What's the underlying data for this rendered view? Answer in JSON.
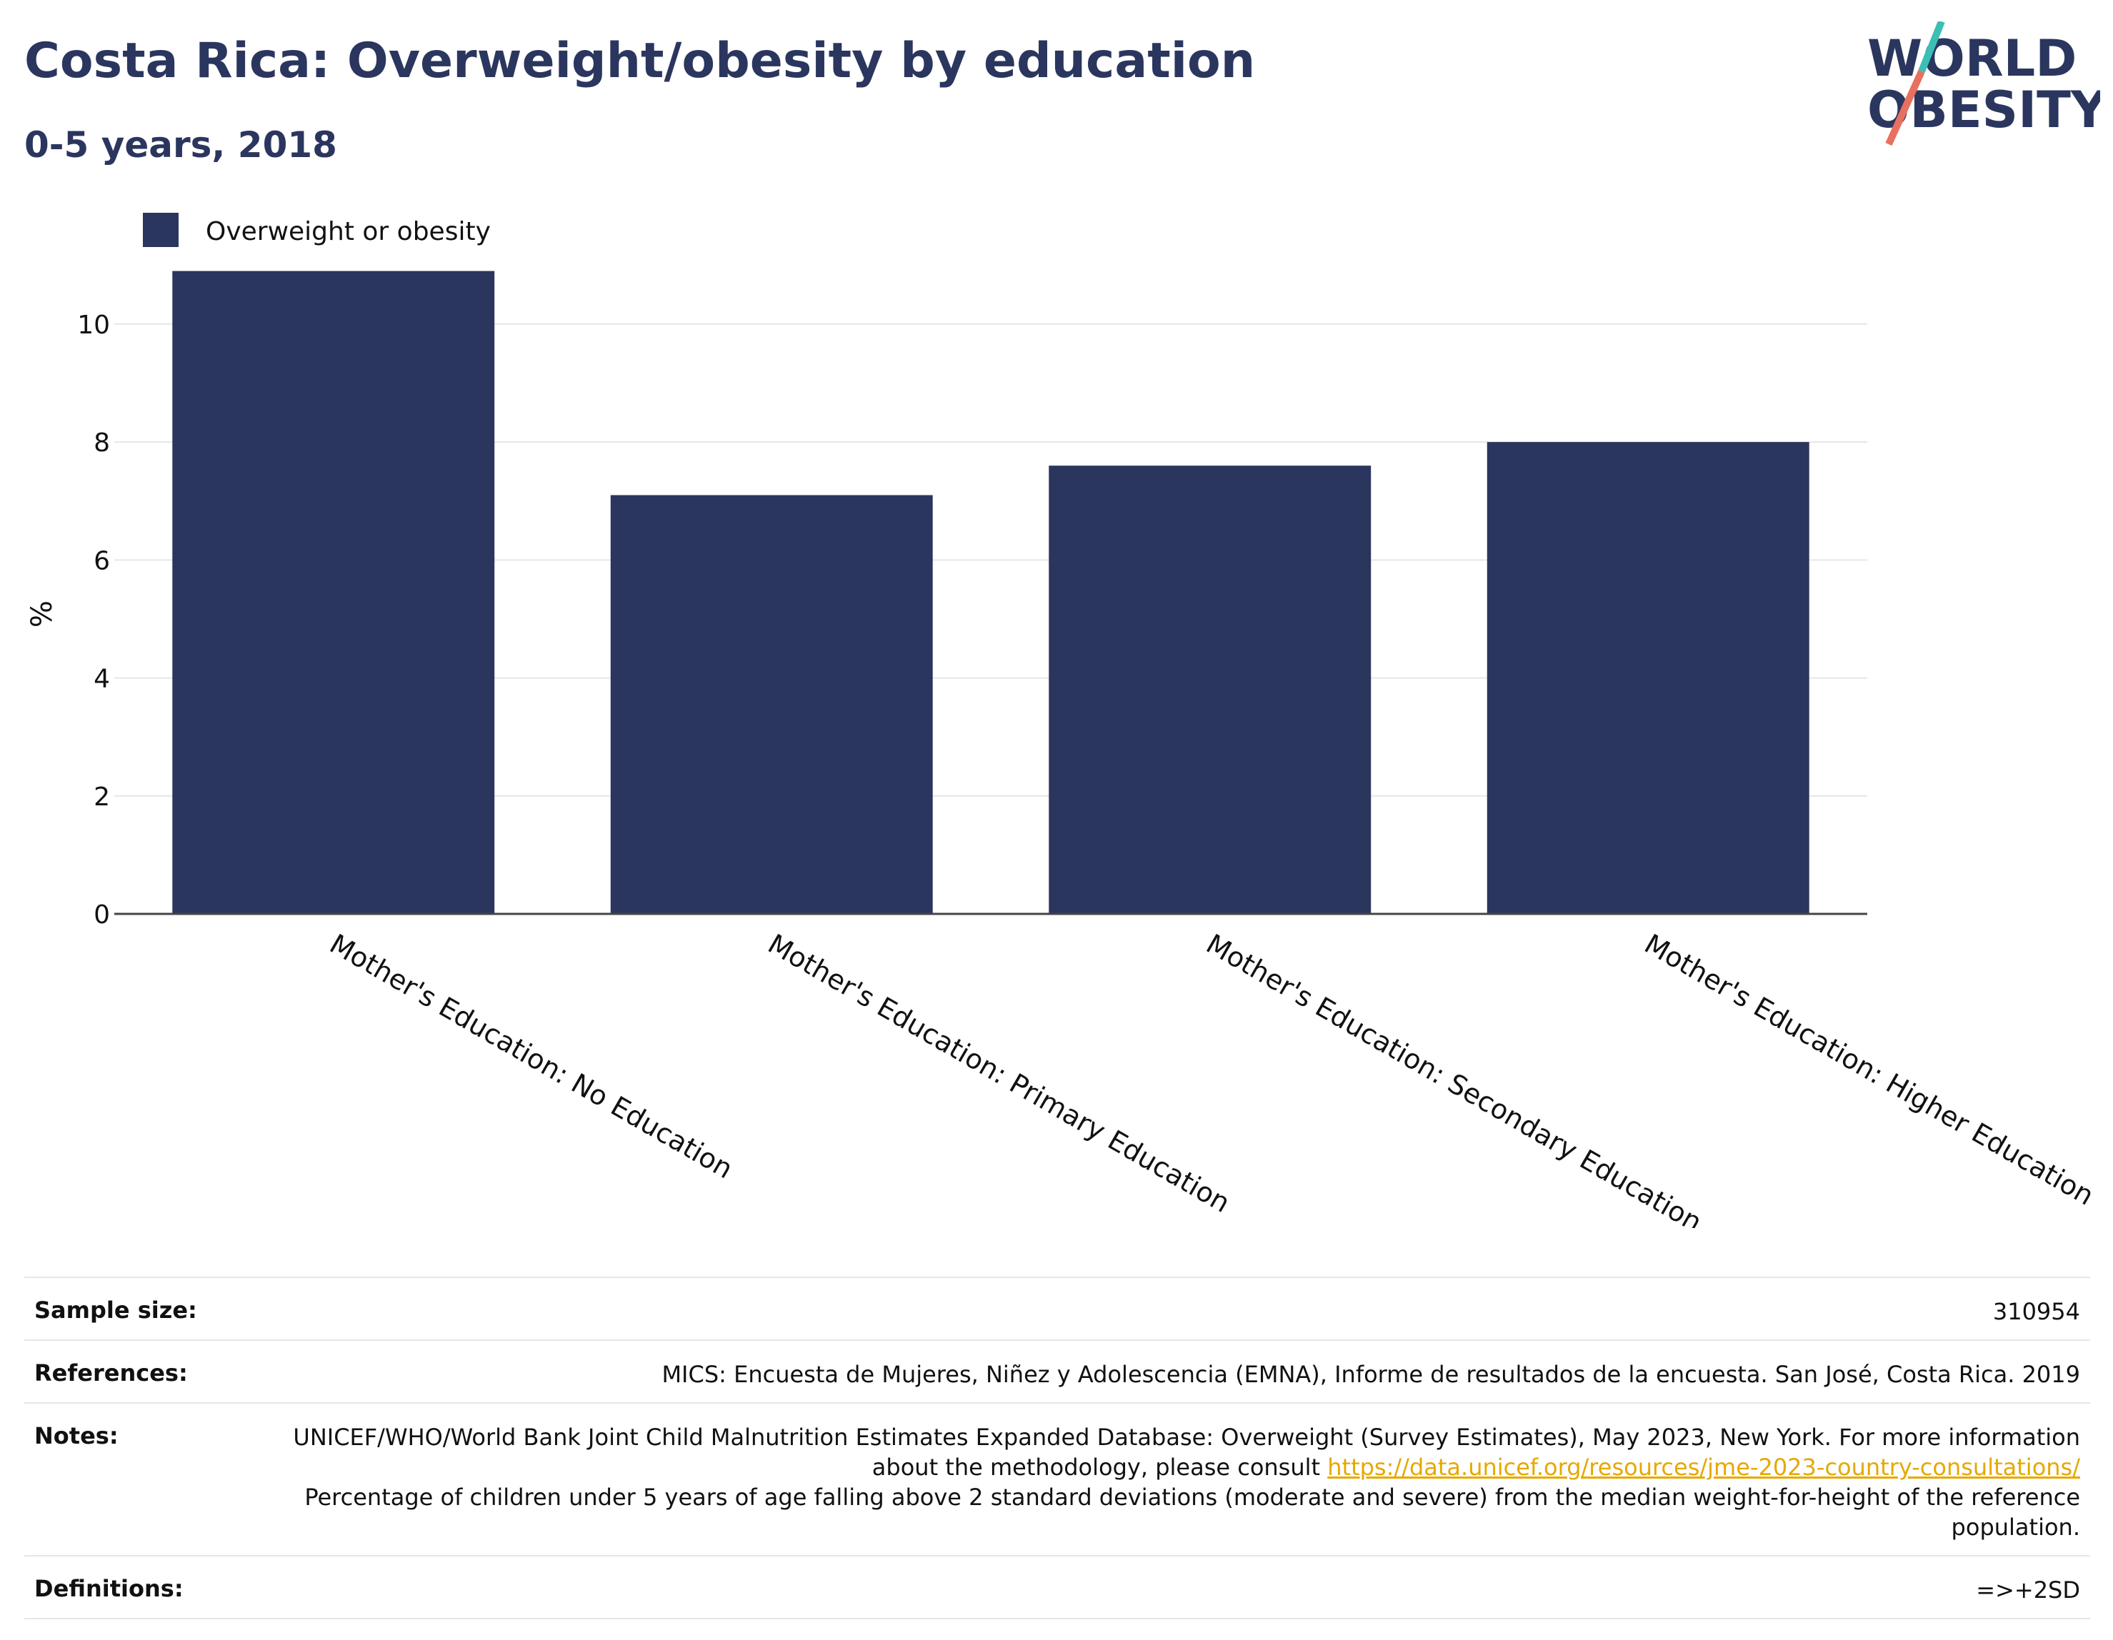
{
  "header": {
    "title": "Costa Rica: Overweight/obesity by education",
    "subtitle": "0-5 years, 2018",
    "logo_line1": "WORLD",
    "logo_line2": "OBESITY"
  },
  "colors": {
    "bar": "#2b365f",
    "title": "#2b365f",
    "logo_teal": "#3bbfb4",
    "logo_coral": "#e8705e",
    "link": "#e6a800"
  },
  "chart_data": {
    "type": "bar",
    "categories": [
      "Mother's Education: No Education",
      "Mother's Education: Primary Education",
      "Mother's Education: Secondary Education",
      "Mother's Education: Higher Education"
    ],
    "series": [
      {
        "name": "Overweight or obesity",
        "values": [
          10.9,
          7.1,
          7.6,
          8.0
        ]
      }
    ],
    "ylabel": "%",
    "xlabel": "",
    "ylim": [
      0,
      11.5
    ],
    "yticks": [
      0,
      2,
      4,
      6,
      8,
      10
    ],
    "grid": true,
    "legend_position": "top-left"
  },
  "info": {
    "sample_size_label": "Sample size:",
    "sample_size_value": "310954",
    "references_label": "References:",
    "references_value": "MICS: Encuesta de Mujeres, Niñez y Adolescencia (EMNA), Informe de resultados de la encuesta. San José, Costa Rica. 2019",
    "notes_label": "Notes:",
    "notes_text1": "UNICEF/WHO/World Bank Joint Child Malnutrition Estimates Expanded Database: Overweight (Survey Estimates), May 2023, New York. For more information about the methodology, please consult",
    "notes_link": "https://data.unicef.org/resources/jme-2023-country-consultations/",
    "notes_text2": "Percentage of children under 5 years of age falling above 2 standard deviations (moderate and severe) from the median weight-for-height of the reference population.",
    "definitions_label": "Definitions:",
    "definitions_value": "=>+2SD"
  }
}
